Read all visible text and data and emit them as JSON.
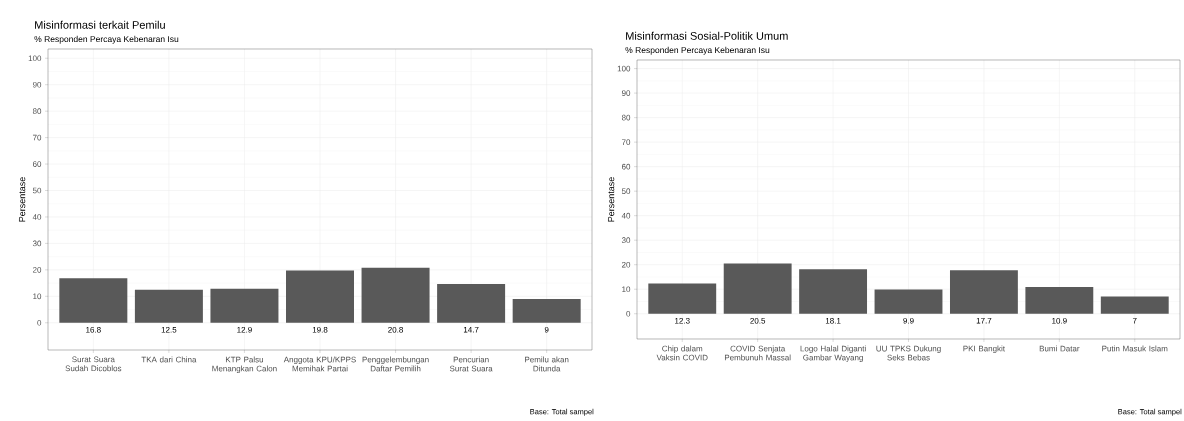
{
  "chart_data": [
    {
      "type": "bar",
      "title": "Misinformasi terkait Pemilu",
      "subtitle": "% Responden Percaya Kebenaran Isu",
      "ylabel": "Persentase",
      "annotations": [
        "Base: Total sampel"
      ],
      "categories": [
        "Surat Suara Sudah Dicoblos",
        "TKA dari China",
        "KTP Palsu Menangkan Calon",
        "Anggota KPU/KPPS Memihak Partai",
        "Penggelembungan Daftar Pemilih",
        "Pencurian Surat Suara",
        "Pemilu akan Ditunda"
      ],
      "values": [
        16.8,
        12.5,
        12.9,
        19.8,
        20.8,
        14.7,
        9
      ],
      "color": "#595959",
      "data_labels": true,
      "grid": true,
      "ylim": [
        -10.3,
        103.5
      ],
      "yticks": [
        0,
        10,
        20,
        30,
        40,
        50,
        60,
        70,
        80,
        90,
        100
      ]
    },
    {
      "type": "bar",
      "title": "Misinformasi Sosial-Politik Umum",
      "subtitle": "% Responden Percaya Kebenaran Isu",
      "ylabel": "Persentase",
      "annotations": [
        "Base: Total sampel"
      ],
      "categories": [
        "Chip dalam Vaksin COVID",
        "COVID Senjata Pembunuh Massal",
        "Logo Halal Diganti Gambar Wayang",
        "UU TPKS Dukung Seks Bebas",
        "PKI Bangkit",
        "Bumi Datar",
        "Putin Masuk Islam"
      ],
      "values": [
        12.3,
        20.5,
        18.1,
        9.9,
        17.7,
        10.9,
        7
      ],
      "color": "#595959",
      "data_labels": true,
      "grid": true,
      "ylim": [
        -10.3,
        103.5
      ],
      "yticks": [
        0,
        10,
        20,
        30,
        40,
        50,
        60,
        70,
        80,
        90,
        100
      ]
    }
  ]
}
